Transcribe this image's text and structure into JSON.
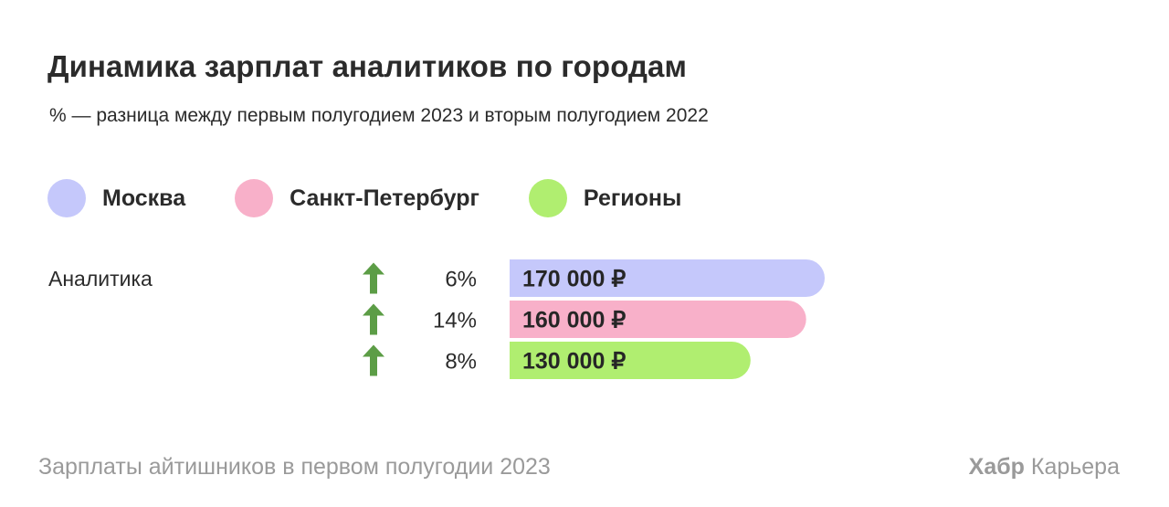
{
  "header": {
    "title": "Динамика зарплат  аналитиков  по городам",
    "subtitle": "% — разница между первым полугодием 2023 и вторым полугодием 2022"
  },
  "legend": [
    {
      "label": "Москва",
      "color": "#c5c8fb"
    },
    {
      "label": "Санкт-Петербург",
      "color": "#f8b0c9"
    },
    {
      "label": "Регионы",
      "color": "#b0ee70"
    }
  ],
  "chart_data": {
    "type": "bar",
    "orientation": "horizontal",
    "categories": [
      "Аналитика"
    ],
    "series": [
      {
        "name": "Москва",
        "value": 170000,
        "value_label": "170 000 ₽",
        "change_label": "6%",
        "change_direction": "up",
        "color": "#c5c8fb"
      },
      {
        "name": "Санкт-Петербург",
        "value": 160000,
        "value_label": "160 000 ₽",
        "change_label": "14%",
        "change_direction": "up",
        "color": "#f8b0c9"
      },
      {
        "name": "Регионы",
        "value": 130000,
        "value_label": "130 000 ₽",
        "change_label": "8%",
        "change_direction": "up",
        "color": "#b0ee70"
      }
    ],
    "title": "Динамика зарплат  аналитиков  по городам",
    "subtitle": "% — разница между первым полугодием 2023 и вторым полугодием 2022",
    "legend_position": "top-left",
    "grid": false,
    "arrow_color": "#5c9d46"
  },
  "footer": {
    "source": "Зарплаты айтишников в первом полугодии 2023",
    "brand_bold": "Хабр",
    "brand_rest": " Карьера"
  }
}
